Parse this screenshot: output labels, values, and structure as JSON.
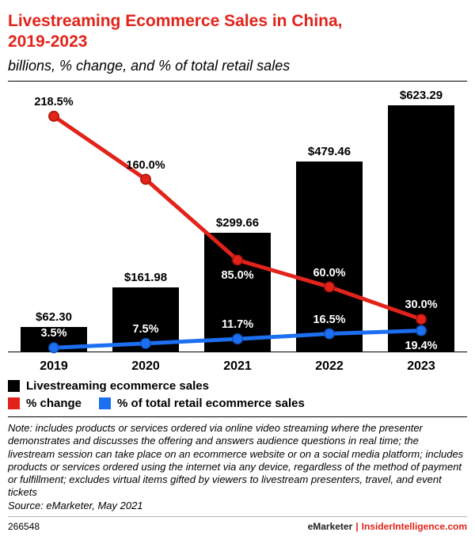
{
  "header": {
    "title_line1": "Livestreaming Ecommerce Sales in China,",
    "title_line2": "2019-2023",
    "subtitle": "billions, % change, and % of total retail sales"
  },
  "chart_data": {
    "type": "bar",
    "title": "Livestreaming Ecommerce Sales in China, 2019-2023",
    "subtitle": "billions, % change, and % of total retail sales",
    "categories": [
      "2019",
      "2020",
      "2021",
      "2022",
      "2023"
    ],
    "series": [
      {
        "name": "Livestreaming ecommerce sales",
        "type": "bar",
        "unit": "USD billions",
        "values": [
          62.3,
          161.98,
          299.66,
          479.46,
          623.29
        ],
        "labels": [
          "$62.30",
          "$161.98",
          "$299.66",
          "$479.46",
          "$623.29"
        ],
        "color": "#000000"
      },
      {
        "name": "% change",
        "type": "line",
        "unit": "percent",
        "values": [
          218.5,
          160.0,
          85.0,
          60.0,
          30.0
        ],
        "labels": [
          "218.5%",
          "160.0%",
          "85.0%",
          "60.0%",
          "30.0%"
        ],
        "color": "#e2231a"
      },
      {
        "name": "% of total retail ecommerce sales",
        "type": "line",
        "unit": "percent",
        "values": [
          3.5,
          7.5,
          11.7,
          16.5,
          19.4
        ],
        "labels": [
          "3.5%",
          "7.5%",
          "11.7%",
          "16.5%",
          "19.4%"
        ],
        "color": "#1d6ff2"
      }
    ],
    "legend_position": "bottom-left",
    "grid": false
  },
  "legend": [
    {
      "label": "Livestreaming ecommerce sales",
      "color": "#000000"
    },
    {
      "label": "% change",
      "color": "#e2231a"
    },
    {
      "label": "% of total retail ecommerce sales",
      "color": "#1d6ff2"
    }
  ],
  "note": "Note: includes products or services ordered via online video streaming where the presenter demonstrates and discusses the offering and answers audience questions in real time; the livestream session can take place on an ecommerce website or on a social media platform; includes products or services ordered using the internet via any device, regardless of the method of payment or fulfillment; excludes virtual items gifted by viewers to livestream presenters, travel, and event tickets",
  "source": "Source: eMarketer, May 2021",
  "footer": {
    "id": "266548",
    "brand": "eMarketer",
    "pipe": "|",
    "site": "InsiderIntelligence.com"
  }
}
